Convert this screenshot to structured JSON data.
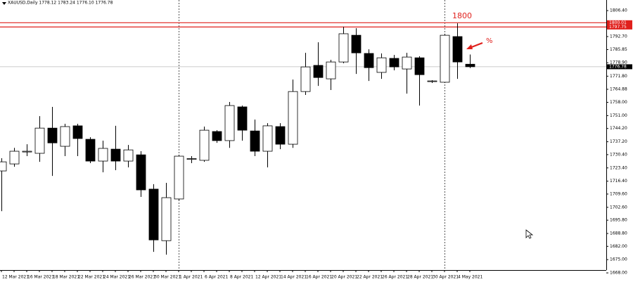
{
  "chart_data": {
    "type": "candlestick",
    "title": "XAUUSD,Daily  1778.12 1783.24 1776.10 1776.78",
    "categories": [
      "12 Mar 2021",
      null,
      "16 Mar 2021",
      null,
      "18 Mar 2021",
      null,
      "22 Mar 2021",
      null,
      "24 Mar 2021",
      null,
      "26 Mar 2021",
      null,
      "30 Mar 2021",
      null,
      "1 Apr 2021",
      null,
      "6 Apr 2021",
      null,
      "8 Apr 2021",
      null,
      "12 Apr 2021",
      null,
      "14 Apr 2021",
      null,
      "16 Apr 2021",
      null,
      "20 Apr 2021",
      null,
      "22 Apr 2021",
      null,
      "26 Apr 2021",
      null,
      "28 Apr 2021",
      null,
      "30 Apr 2021",
      null,
      "4 May 2021",
      null
    ],
    "open": [
      1721.8,
      1725.5,
      1731.8,
      1731.1,
      1744.4,
      1734.8,
      1745.6,
      1738.5,
      1727.0,
      1733.3,
      1727.0,
      1730.3,
      1712.2,
      1685.0,
      1707.0,
      1728.1,
      1727.4,
      1742.6,
      1737.8,
      1755.6,
      1742.9,
      1732.2,
      1745.2,
      1735.9,
      1763.7,
      1777.5,
      1770.4,
      1779.3,
      1793.4,
      1783.8,
      1773.8,
      1781.2,
      1775.6,
      1781.5,
      1769.1,
      1768.6,
      1792.7,
      1778.12
    ],
    "high": [
      1728.5,
      1734.0,
      1735.9,
      1750.7,
      1755.6,
      1746.7,
      1746.7,
      1739.6,
      1737.8,
      1745.6,
      1735.5,
      1732.2,
      1714.8,
      1715.5,
      1730.3,
      1729.6,
      1745.2,
      1743.3,
      1758.2,
      1756.3,
      1748.9,
      1747.0,
      1747.0,
      1770.0,
      1784.1,
      1789.7,
      1780.4,
      1797.9,
      1797.1,
      1786.0,
      1783.8,
      1783.0,
      1784.1,
      1782.3,
      1769.7,
      1794.2,
      1799.7,
      1783.24
    ],
    "low": [
      1700.6,
      1724.0,
      1729.6,
      1726.6,
      1719.2,
      1729.6,
      1729.6,
      1725.9,
      1721.1,
      1722.2,
      1723.7,
      1708.1,
      1679.1,
      1677.6,
      1706.2,
      1725.9,
      1726.6,
      1736.6,
      1734.0,
      1737.8,
      1729.6,
      1723.7,
      1733.3,
      1734.0,
      1761.9,
      1766.7,
      1764.5,
      1778.6,
      1773.0,
      1769.3,
      1770.4,
      1774.9,
      1762.6,
      1756.3,
      1768.2,
      1768.2,
      1770.4,
      1776.1
    ],
    "close": [
      1726.6,
      1732.2,
      1732.2,
      1744.4,
      1736.6,
      1745.2,
      1738.9,
      1727.0,
      1733.7,
      1727.0,
      1732.9,
      1711.8,
      1685.4,
      1707.7,
      1729.6,
      1728.3,
      1743.3,
      1737.8,
      1756.3,
      1743.3,
      1732.2,
      1745.6,
      1735.9,
      1763.7,
      1776.7,
      1771.1,
      1779.3,
      1794.2,
      1784.1,
      1776.3,
      1781.5,
      1776.7,
      1781.9,
      1772.6,
      1769.3,
      1793.4,
      1779.3,
      1776.78
    ],
    "up_color": "#ffffff",
    "down_color": "#000000",
    "ylim": [
      1669.5,
      1812
    ],
    "yticks": [
      {
        "value": 1806.4,
        "label": "1806.40"
      },
      {
        "value": 1792.7,
        "label": "1792.70"
      },
      1785.85,
      {
        "value": 1778.9,
        "label": "1778.90"
      },
      {
        "value": 1771.8,
        "label": "1771.80"
      },
      1764.88,
      {
        "value": 1758,
        "label": "1758.00"
      },
      {
        "value": 1751,
        "label": "1751.00"
      },
      {
        "value": 1744.2,
        "label": "1744.20"
      },
      {
        "value": 1737.2,
        "label": "1737.20"
      },
      {
        "value": 1730.4,
        "label": "1730.40"
      },
      {
        "value": 1723.4,
        "label": "1723.40"
      },
      {
        "value": 1716.4,
        "label": "1716.40"
      },
      {
        "value": 1709.6,
        "label": "1709.60"
      },
      {
        "value": 1702.6,
        "label": "1702.60"
      },
      {
        "value": 1695.8,
        "label": "1695.80"
      },
      {
        "value": 1688.8,
        "label": "1688.80"
      },
      {
        "value": 1682,
        "label": "1682.00"
      },
      {
        "value": 1675,
        "label": "1675.00"
      },
      {
        "value": 1668,
        "label": "1668.00"
      }
    ],
    "levels": [
      {
        "value": 1800.01,
        "label": "1800.01"
      },
      {
        "value": 1797.75,
        "label": "1797.75"
      }
    ],
    "level_color": "#e0201c",
    "bid": {
      "value": 1776.78,
      "label": "1776.78"
    },
    "annotations": [
      {
        "text": "1800"
      },
      {
        "text": "%"
      }
    ]
  }
}
